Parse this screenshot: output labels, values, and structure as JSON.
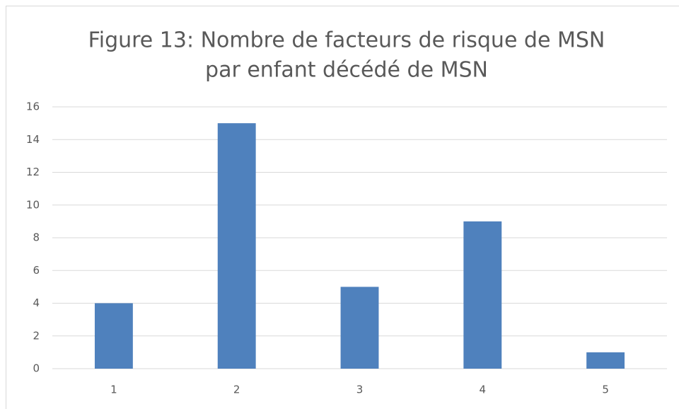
{
  "chart_data": {
    "type": "bar",
    "title": [
      "Figure 13: Nombre de facteurs de risque de MSN",
      "par enfant décédé de MSN"
    ],
    "categories": [
      "1",
      "2",
      "3",
      "4",
      "5"
    ],
    "values": [
      4,
      15,
      5,
      9,
      1
    ],
    "color": "#4f81bd",
    "ylim": [
      0,
      16
    ],
    "yticks": [
      0,
      2,
      4,
      6,
      8,
      10,
      12,
      14,
      16
    ],
    "grid": true
  }
}
